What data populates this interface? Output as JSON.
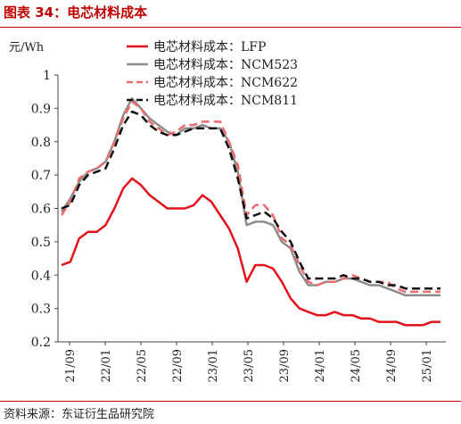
{
  "header": {
    "title": "图表 34：电芯材料成本"
  },
  "footer": {
    "source": "资料来源：东证衍生品研究院"
  },
  "chart_data": {
    "type": "line",
    "ylabel": "元/Wh",
    "ylim": [
      0.2,
      1.0
    ],
    "yticks": [
      "0.2",
      "0.3",
      "0.4",
      "0.5",
      "0.6",
      "0.7",
      "0.8",
      "0.9",
      "1"
    ],
    "xticks": [
      "21/09",
      "22/01",
      "22/05",
      "22/09",
      "23/01",
      "23/05",
      "23/09",
      "24/01",
      "24/05",
      "24/09",
      "25/01"
    ],
    "x_range": [
      0,
      43
    ],
    "grid": false,
    "legend_position": "top",
    "series": [
      {
        "name": "电芯材料成本：LFP",
        "color": "#e4111b",
        "dash": "solid",
        "points": [
          [
            0,
            0.43
          ],
          [
            1,
            0.44
          ],
          [
            2,
            0.51
          ],
          [
            3,
            0.53
          ],
          [
            4,
            0.53
          ],
          [
            5,
            0.55
          ],
          [
            6,
            0.6
          ],
          [
            7,
            0.66
          ],
          [
            8,
            0.69
          ],
          [
            9,
            0.67
          ],
          [
            10,
            0.64
          ],
          [
            11,
            0.62
          ],
          [
            12,
            0.6
          ],
          [
            13,
            0.6
          ],
          [
            14,
            0.6
          ],
          [
            15,
            0.61
          ],
          [
            16,
            0.64
          ],
          [
            17,
            0.62
          ],
          [
            18,
            0.58
          ],
          [
            19,
            0.54
          ],
          [
            20,
            0.48
          ],
          [
            21,
            0.38
          ],
          [
            22,
            0.43
          ],
          [
            23,
            0.43
          ],
          [
            24,
            0.42
          ],
          [
            25,
            0.38
          ],
          [
            26,
            0.33
          ],
          [
            27,
            0.3
          ],
          [
            28,
            0.29
          ],
          [
            29,
            0.28
          ],
          [
            30,
            0.28
          ],
          [
            31,
            0.29
          ],
          [
            32,
            0.28
          ],
          [
            33,
            0.28
          ],
          [
            34,
            0.27
          ],
          [
            35,
            0.27
          ],
          [
            36,
            0.26
          ],
          [
            37,
            0.26
          ],
          [
            38,
            0.26
          ],
          [
            39,
            0.25
          ],
          [
            40,
            0.25
          ],
          [
            41,
            0.25
          ],
          [
            42,
            0.26
          ],
          [
            43,
            0.26
          ]
        ]
      },
      {
        "name": "电芯材料成本：NCM523",
        "color": "#8c8c8c",
        "dash": "solid",
        "points": [
          [
            0,
            0.59
          ],
          [
            1,
            0.63
          ],
          [
            2,
            0.68
          ],
          [
            3,
            0.71
          ],
          [
            4,
            0.72
          ],
          [
            5,
            0.74
          ],
          [
            6,
            0.8
          ],
          [
            7,
            0.88
          ],
          [
            8,
            0.93
          ],
          [
            9,
            0.9
          ],
          [
            10,
            0.87
          ],
          [
            11,
            0.85
          ],
          [
            12,
            0.83
          ],
          [
            13,
            0.82
          ],
          [
            14,
            0.84
          ],
          [
            15,
            0.84
          ],
          [
            16,
            0.85
          ],
          [
            17,
            0.84
          ],
          [
            18,
            0.84
          ],
          [
            19,
            0.8
          ],
          [
            20,
            0.71
          ],
          [
            21,
            0.55
          ],
          [
            22,
            0.56
          ],
          [
            23,
            0.56
          ],
          [
            24,
            0.55
          ],
          [
            25,
            0.5
          ],
          [
            26,
            0.48
          ],
          [
            27,
            0.41
          ],
          [
            28,
            0.37
          ],
          [
            29,
            0.37
          ],
          [
            30,
            0.38
          ],
          [
            31,
            0.38
          ],
          [
            32,
            0.39
          ],
          [
            33,
            0.39
          ],
          [
            34,
            0.38
          ],
          [
            35,
            0.37
          ],
          [
            36,
            0.37
          ],
          [
            37,
            0.36
          ],
          [
            38,
            0.35
          ],
          [
            39,
            0.34
          ],
          [
            40,
            0.34
          ],
          [
            41,
            0.34
          ],
          [
            42,
            0.34
          ],
          [
            43,
            0.34
          ]
        ]
      },
      {
        "name": "电芯材料成本：NCM622",
        "color": "#ee6b6e",
        "dash": "dashed",
        "points": [
          [
            0,
            0.58
          ],
          [
            1,
            0.62
          ],
          [
            2,
            0.69
          ],
          [
            3,
            0.71
          ],
          [
            4,
            0.72
          ],
          [
            5,
            0.74
          ],
          [
            6,
            0.8
          ],
          [
            7,
            0.87
          ],
          [
            8,
            0.92
          ],
          [
            9,
            0.9
          ],
          [
            10,
            0.86
          ],
          [
            11,
            0.84
          ],
          [
            12,
            0.82
          ],
          [
            13,
            0.83
          ],
          [
            14,
            0.85
          ],
          [
            15,
            0.85
          ],
          [
            16,
            0.86
          ],
          [
            17,
            0.86
          ],
          [
            18,
            0.86
          ],
          [
            19,
            0.8
          ],
          [
            20,
            0.73
          ],
          [
            21,
            0.58
          ],
          [
            22,
            0.61
          ],
          [
            23,
            0.61
          ],
          [
            24,
            0.58
          ],
          [
            25,
            0.51
          ],
          [
            26,
            0.49
          ],
          [
            27,
            0.43
          ],
          [
            28,
            0.38
          ],
          [
            29,
            0.37
          ],
          [
            30,
            0.38
          ],
          [
            31,
            0.38
          ],
          [
            32,
            0.39
          ],
          [
            33,
            0.4
          ],
          [
            34,
            0.39
          ],
          [
            35,
            0.38
          ],
          [
            36,
            0.38
          ],
          [
            37,
            0.38
          ],
          [
            38,
            0.36
          ],
          [
            39,
            0.35
          ],
          [
            40,
            0.35
          ],
          [
            41,
            0.35
          ],
          [
            42,
            0.35
          ],
          [
            43,
            0.35
          ]
        ]
      },
      {
        "name": "电芯材料成本：NCM811",
        "color": "#111111",
        "dash": "dashed",
        "points": [
          [
            0,
            0.6
          ],
          [
            1,
            0.61
          ],
          [
            2,
            0.67
          ],
          [
            3,
            0.7
          ],
          [
            4,
            0.71
          ],
          [
            5,
            0.72
          ],
          [
            6,
            0.78
          ],
          [
            7,
            0.85
          ],
          [
            8,
            0.89
          ],
          [
            9,
            0.88
          ],
          [
            10,
            0.85
          ],
          [
            11,
            0.83
          ],
          [
            12,
            0.82
          ],
          [
            13,
            0.82
          ],
          [
            14,
            0.83
          ],
          [
            15,
            0.84
          ],
          [
            16,
            0.84
          ],
          [
            17,
            0.84
          ],
          [
            18,
            0.84
          ],
          [
            19,
            0.78
          ],
          [
            20,
            0.69
          ],
          [
            21,
            0.57
          ],
          [
            22,
            0.58
          ],
          [
            23,
            0.59
          ],
          [
            24,
            0.57
          ],
          [
            25,
            0.53
          ],
          [
            26,
            0.5
          ],
          [
            27,
            0.44
          ],
          [
            28,
            0.39
          ],
          [
            29,
            0.39
          ],
          [
            30,
            0.39
          ],
          [
            31,
            0.39
          ],
          [
            32,
            0.4
          ],
          [
            33,
            0.39
          ],
          [
            34,
            0.39
          ],
          [
            35,
            0.38
          ],
          [
            36,
            0.38
          ],
          [
            37,
            0.37
          ],
          [
            38,
            0.37
          ],
          [
            39,
            0.36
          ],
          [
            40,
            0.36
          ],
          [
            41,
            0.36
          ],
          [
            42,
            0.36
          ],
          [
            43,
            0.36
          ]
        ]
      }
    ]
  }
}
